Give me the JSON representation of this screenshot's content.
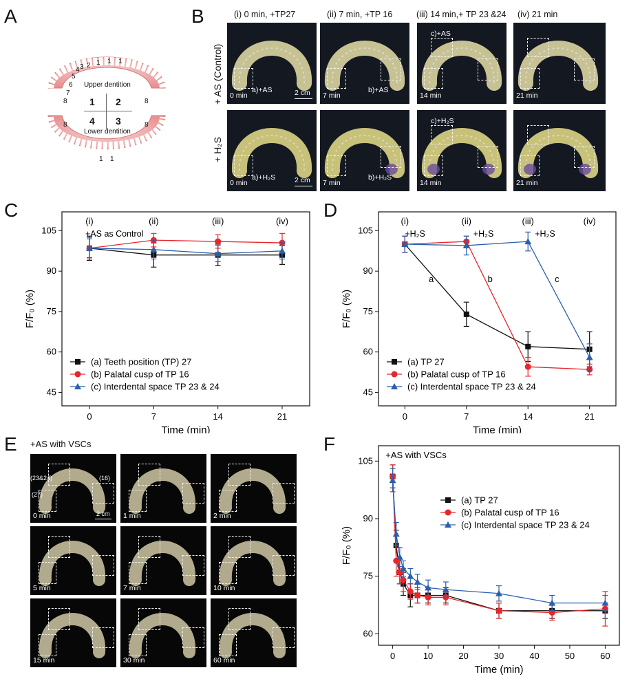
{
  "panels": {
    "A": {
      "label": "A",
      "upper": "Upper dentition",
      "lower": "Lower dentition",
      "quadrants": [
        "1",
        "2",
        "3",
        "4"
      ],
      "numbers_upper_left": [
        "1",
        "2",
        "3",
        "4",
        "5",
        "6",
        "7",
        "8"
      ],
      "number_upper_right": "8",
      "numbers_upper_top": [
        "1",
        "1"
      ],
      "numbers_lower": [
        "8",
        "8",
        "1",
        "1"
      ]
    },
    "B": {
      "label": "B",
      "col_titles": [
        "(i) 0 min, +TP27",
        "(ii) 7 min, +TP 16",
        "(iii) 14 min,+ TP 23 &24",
        "(iv) 21 min"
      ],
      "row1": "+ AS (Control)",
      "row2": "+ H₂S",
      "times": [
        "0 min",
        "7 min",
        "14 min",
        "21 min"
      ],
      "annot_as": [
        "a)+AS",
        "b)+AS",
        "c)+AS"
      ],
      "annot_h2s": [
        "a)+H₂S",
        "b)+H₂S",
        "c)+H₂S"
      ],
      "scale": "2 cm"
    },
    "E": {
      "label": "E",
      "title": "+AS with VSCs",
      "times": [
        "0 min",
        "1 min",
        "2 min",
        "5 min",
        "7 min",
        "10 min",
        "15 min",
        "30 min",
        "60 min"
      ],
      "annots": [
        "(23&24)",
        "(16)",
        "(27)"
      ],
      "scale": "2 cm"
    }
  },
  "chart_data": [
    {
      "id": "C",
      "label": "C",
      "type": "line",
      "xlabel": "Time (min)",
      "ylabel": "F/F₀ (%)",
      "xlim": [
        -3,
        24
      ],
      "ylim": [
        40,
        112
      ],
      "xticks": [
        0,
        7,
        14,
        21
      ],
      "yticks": [
        45,
        60,
        75,
        90,
        105
      ],
      "stage_labels": [
        "(i)",
        "(ii)",
        "(iii)",
        "(iv)"
      ],
      "annotation": "+AS as Control",
      "series": [
        {
          "name": "(a) Teeth position (TP) 27",
          "color": "#111111",
          "marker": "square",
          "x": [
            0,
            7,
            14,
            21
          ],
          "y": [
            98.5,
            96,
            96,
            96
          ],
          "err": [
            4.5,
            4.5,
            4.0,
            3.5
          ]
        },
        {
          "name": "(b) Palatal cusp of TP 16",
          "color": "#e8262b",
          "marker": "circle",
          "x": [
            0,
            7,
            14,
            21
          ],
          "y": [
            98.5,
            101.5,
            101,
            100.5
          ],
          "err": [
            4.0,
            2.5,
            2.5,
            3.5
          ]
        },
        {
          "name": "(c) Interdental space TP 23 & 24",
          "color": "#2b5fae",
          "marker": "triangle",
          "x": [
            0,
            7,
            14,
            21
          ],
          "y": [
            98.5,
            98,
            96.5,
            97.5
          ],
          "err": [
            3.5,
            3.5,
            3.0,
            3.0
          ]
        }
      ]
    },
    {
      "id": "D",
      "label": "D",
      "type": "line",
      "xlabel": "Time (min)",
      "ylabel": "F/F₀ (%)",
      "xlim": [
        -3,
        24
      ],
      "ylim": [
        40,
        112
      ],
      "xticks": [
        0,
        7,
        14,
        21
      ],
      "yticks": [
        45,
        60,
        75,
        90,
        105
      ],
      "stage_labels": [
        "(i)",
        "(ii)",
        "(iii)",
        "(iv)"
      ],
      "stage_notes": [
        "+H₂S",
        "+H₂S",
        "+H₂S"
      ],
      "line_letters": [
        "a",
        "b",
        "c"
      ],
      "series": [
        {
          "name": "(a) TP 27",
          "color": "#111111",
          "marker": "square",
          "x": [
            0,
            7,
            14,
            21
          ],
          "y": [
            100,
            74,
            62,
            61
          ],
          "err": [
            3,
            4.5,
            5.5,
            6.5
          ]
        },
        {
          "name": "(b) Palatal cusp of TP 16",
          "color": "#e8262b",
          "marker": "circle",
          "x": [
            0,
            7,
            14,
            21
          ],
          "y": [
            100,
            101,
            54.5,
            53.5
          ],
          "err": [
            3,
            2,
            3.5,
            2
          ]
        },
        {
          "name": "(c) Interdental space TP 23 & 24",
          "color": "#2b5fae",
          "marker": "triangle",
          "x": [
            0,
            7,
            14,
            21
          ],
          "y": [
            100,
            99.5,
            101,
            58
          ],
          "err": [
            3,
            3.5,
            3.5,
            5
          ]
        }
      ]
    },
    {
      "id": "F",
      "label": "F",
      "type": "line",
      "xlabel": "Time (min)",
      "ylabel": "F/F₀ (%)",
      "xlim": [
        -4,
        64
      ],
      "ylim": [
        57,
        109
      ],
      "xticks": [
        0,
        10,
        20,
        30,
        40,
        50,
        60
      ],
      "yticks": [
        60,
        75,
        90,
        105
      ],
      "annotation": "+AS with VSCs",
      "series": [
        {
          "name": "(a) TP 27",
          "color": "#111111",
          "marker": "square",
          "x": [
            0,
            1,
            2,
            3,
            5,
            7,
            10,
            15,
            30,
            45,
            60
          ],
          "y": [
            101,
            83,
            76,
            73,
            70,
            70,
            70,
            70,
            66,
            66,
            66
          ],
          "err": [
            3,
            4,
            3,
            3,
            3,
            2,
            2,
            2,
            2,
            2,
            2
          ]
        },
        {
          "name": "(b) Palatal cusp of TP 16",
          "color": "#e8262b",
          "marker": "circle",
          "x": [
            0,
            1,
            2,
            3,
            5,
            7,
            10,
            15,
            30,
            45,
            60
          ],
          "y": [
            101,
            79,
            76,
            74,
            71,
            70,
            69.5,
            69.5,
            66,
            65.5,
            66.5
          ],
          "err": [
            3,
            4,
            3,
            3,
            2,
            2,
            2,
            2,
            2,
            2,
            4.5
          ]
        },
        {
          "name": "(c) Interdental space TP 23 & 24",
          "color": "#2b5fae",
          "marker": "triangle",
          "x": [
            0,
            1,
            2,
            3,
            5,
            7,
            10,
            15,
            30,
            45,
            60
          ],
          "y": [
            100,
            86,
            80,
            77,
            75,
            73.5,
            72,
            71.5,
            70.5,
            68,
            68
          ],
          "err": [
            3,
            3,
            2.5,
            2,
            2,
            2,
            2,
            2,
            2,
            2,
            2
          ]
        }
      ]
    }
  ]
}
